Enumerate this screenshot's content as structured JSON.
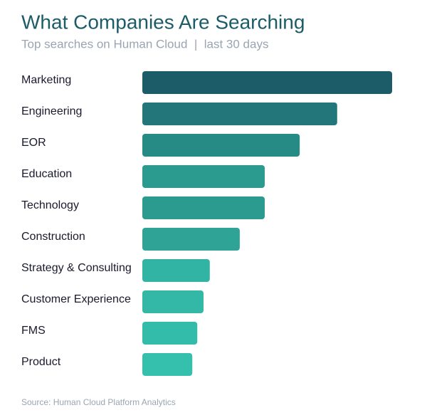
{
  "chart_data": {
    "type": "bar",
    "orientation": "horizontal",
    "title": "What Companies Are Searching",
    "subtitle": "Top searches on Human Cloud  |  last 30 days",
    "categories": [
      "Marketing",
      "Engineering",
      "EOR",
      "Education",
      "Technology",
      "Construction",
      "Strategy & Consulting",
      "Customer Experience",
      "FMS",
      "Product"
    ],
    "values": [
      100,
      78,
      63,
      49,
      49,
      39,
      27,
      24.5,
      22,
      20
    ],
    "colors": [
      "#1c5c68",
      "#23777a",
      "#268a85",
      "#2b9a8f",
      "#2b9a8f",
      "#2ea396",
      "#32b4a5",
      "#33b8a8",
      "#34bcab",
      "#35bfad"
    ],
    "source": "Source: Human Cloud Platform Analytics"
  }
}
